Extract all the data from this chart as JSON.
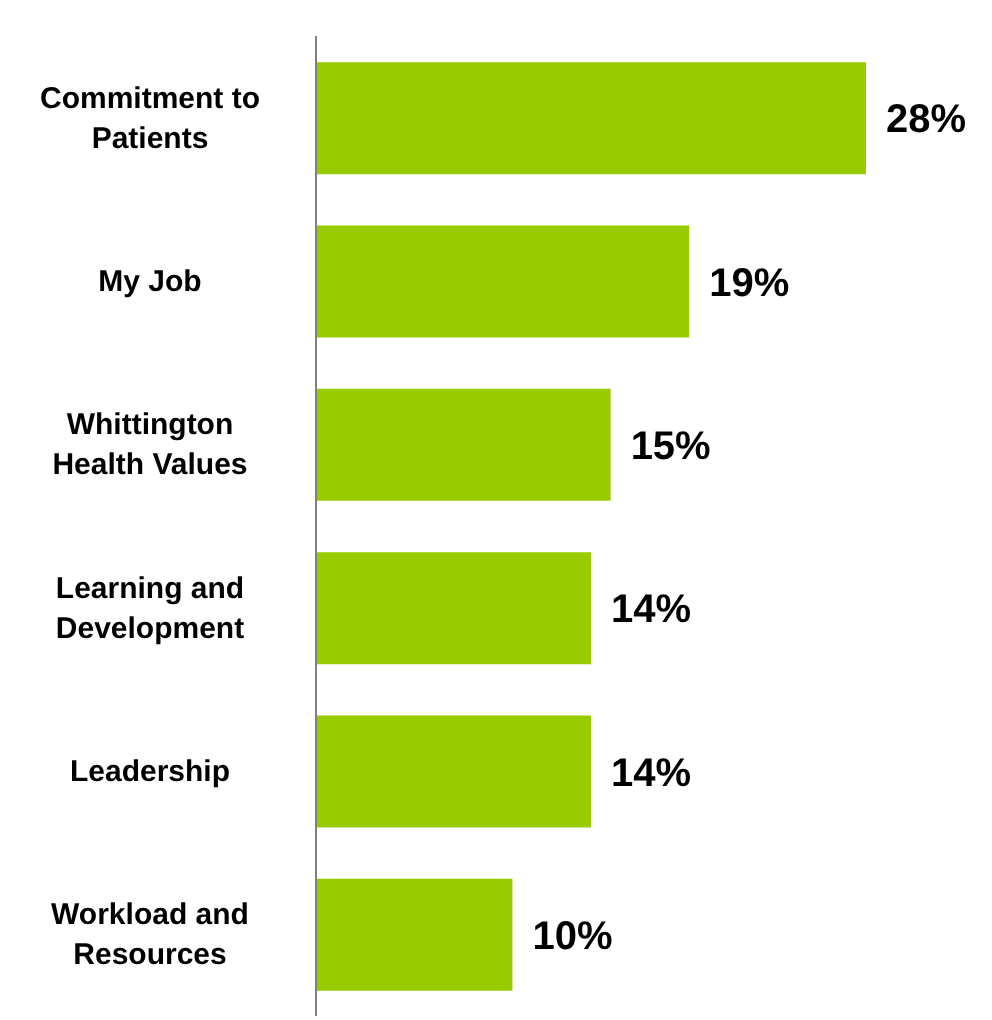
{
  "chart_data": {
    "type": "bar",
    "orientation": "horizontal",
    "categories": [
      "Commitment to Patients",
      "My Job",
      "Whittington Health Values",
      "Learning and Development",
      "Leadership",
      "Workload and Resources"
    ],
    "values": [
      28,
      19,
      15,
      14,
      14,
      10
    ],
    "value_labels": [
      "28%",
      "19%",
      "15%",
      "14%",
      "14%",
      "10%"
    ],
    "color": "#99cc00",
    "grid": false,
    "legend": false
  }
}
